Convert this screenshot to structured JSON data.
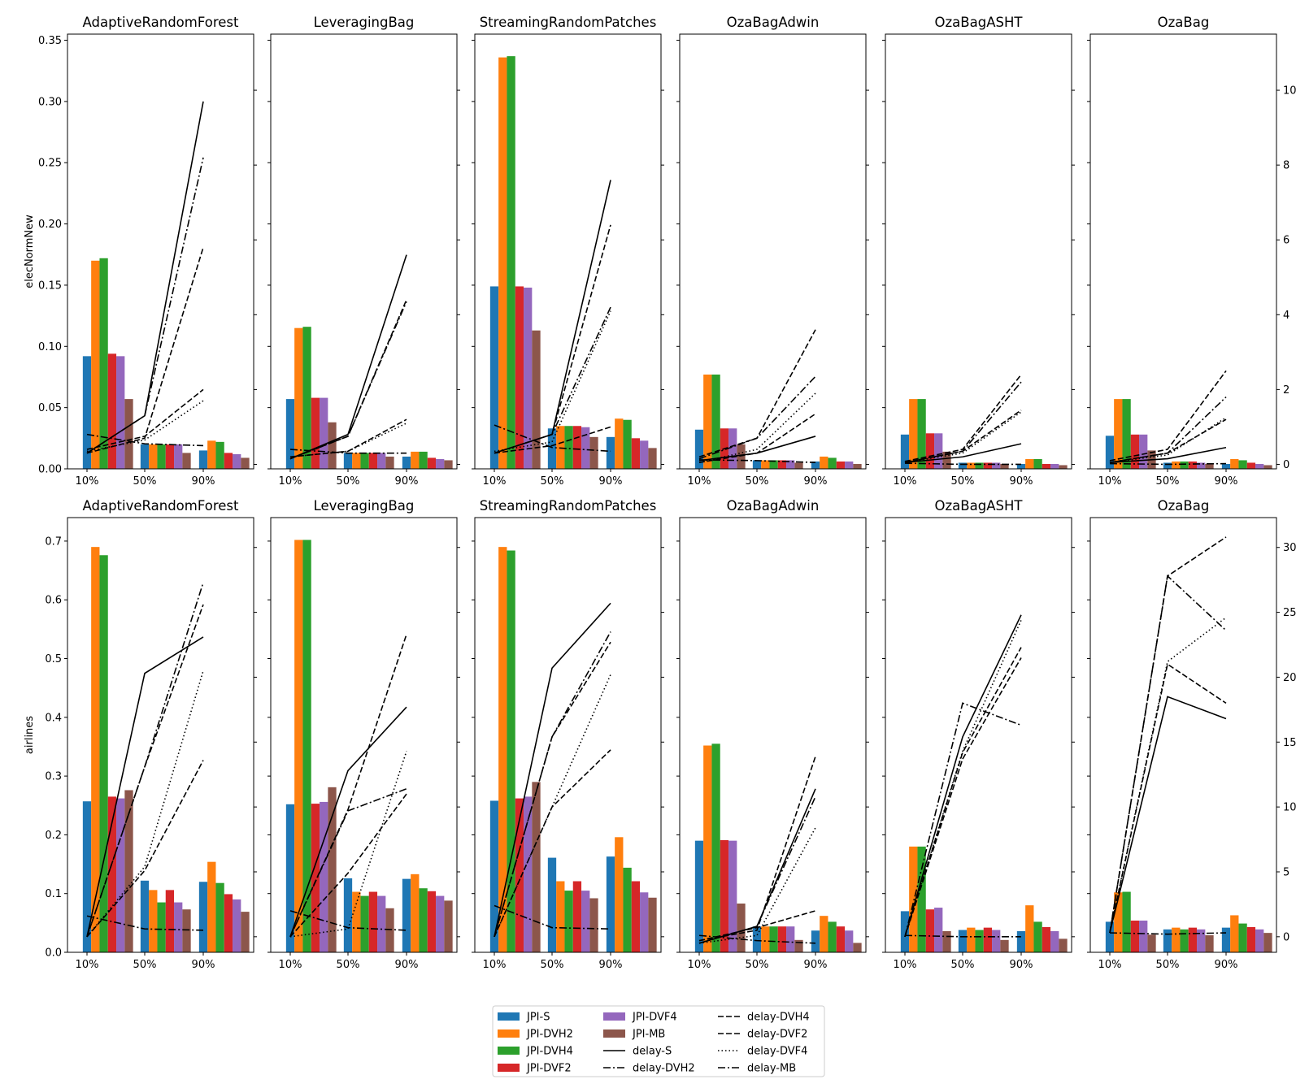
{
  "chart_data": {
    "type": "bar",
    "categories": [
      "10%",
      "50%",
      "90%"
    ],
    "bar_series": [
      {
        "name": "JPI-S",
        "color": "#1f77b4"
      },
      {
        "name": "JPI-DVH2",
        "color": "#ff7f0e"
      },
      {
        "name": "JPI-DVH4",
        "color": "#2ca02c"
      },
      {
        "name": "JPI-DVF2",
        "color": "#d62728"
      },
      {
        "name": "JPI-DVF4",
        "color": "#9467bd"
      },
      {
        "name": "JPI-MB",
        "color": "#8c564b"
      }
    ],
    "line_series": [
      {
        "name": "delay-S",
        "style": "solid"
      },
      {
        "name": "delay-DVH2",
        "style": "dashdot"
      },
      {
        "name": "delay-DVH4",
        "style": "dashed"
      },
      {
        "name": "delay-DVF2",
        "style": "dashed"
      },
      {
        "name": "delay-DVF4",
        "style": "dotted"
      },
      {
        "name": "delay-MB",
        "style": "dashdot"
      }
    ],
    "rows": [
      {
        "ylabel": "elecNormNew",
        "left_ylim": [
          0,
          0.355
        ],
        "left_ticks": [
          "0.00",
          "0.05",
          "0.10",
          "0.15",
          "0.20",
          "0.25",
          "0.30",
          "0.35"
        ],
        "right_ticks": [
          "0",
          "2",
          "4",
          "6",
          "8",
          "10"
        ],
        "panels": [
          {
            "title": "AdaptiveRandomForest",
            "right_ylim": [
              -0.12,
              11.5
            ],
            "bars": [
              [
                0.092,
                0.17,
                0.172,
                0.094,
                0.092,
                0.057
              ],
              [
                0.02,
                0.02,
                0.02,
                0.02,
                0.02,
                0.013
              ],
              [
                0.015,
                0.023,
                0.022,
                0.013,
                0.012,
                0.009
              ]
            ],
            "lines": [
              [
                0.3,
                1.3,
                9.7
              ],
              [
                0.3,
                1.3,
                8.2
              ],
              [
                0.3,
                0.7,
                5.8
              ],
              [
                0.4,
                0.75,
                2.0
              ],
              [
                0.35,
                0.65,
                1.7
              ],
              [
                0.8,
                0.55,
                0.5
              ]
            ]
          },
          {
            "title": "LeveragingBag",
            "right_ylim": [
              -0.12,
              11.5
            ],
            "bars": [
              [
                0.057,
                0.115,
                0.116,
                0.058,
                0.058,
                0.038
              ],
              [
                0.013,
                0.013,
                0.013,
                0.013,
                0.013,
                0.01
              ],
              [
                0.01,
                0.014,
                0.014,
                0.009,
                0.008,
                0.007
              ]
            ],
            "lines": [
              [
                0.15,
                0.8,
                5.6
              ],
              [
                0.15,
                0.75,
                4.35
              ],
              [
                0.15,
                0.75,
                4.4
              ],
              [
                0.2,
                0.35,
                1.2
              ],
              [
                0.2,
                0.35,
                1.1
              ],
              [
                0.4,
                0.3,
                0.3
              ]
            ]
          },
          {
            "title": "StreamingRandomPatches",
            "right_ylim": [
              -0.12,
              11.5
            ],
            "bars": [
              [
                0.149,
                0.336,
                0.337,
                0.149,
                0.148,
                0.113
              ],
              [
                0.033,
                0.035,
                0.035,
                0.035,
                0.034,
                0.026
              ],
              [
                0.026,
                0.041,
                0.04,
                0.025,
                0.023,
                0.017
              ]
            ],
            "lines": [
              [
                0.3,
                0.8,
                7.6
              ],
              [
                0.3,
                0.8,
                4.2
              ],
              [
                0.3,
                0.8,
                6.4
              ],
              [
                0.3,
                0.5,
                1.0
              ],
              [
                0.35,
                0.6,
                4.1
              ],
              [
                1.05,
                0.45,
                0.35
              ]
            ]
          },
          {
            "title": "OzaBagAdwin",
            "right_ylim": [
              -0.12,
              11.5
            ],
            "bars": [
              [
                0.032,
                0.077,
                0.077,
                0.033,
                0.033,
                0.02
              ],
              [
                0.007,
                0.007,
                0.007,
                0.007,
                0.007,
                0.005
              ],
              [
                0.006,
                0.01,
                0.009,
                0.006,
                0.006,
                0.004
              ]
            ],
            "lines": [
              [
                0.1,
                0.3,
                0.75
              ],
              [
                0.15,
                0.7,
                2.35
              ],
              [
                0.2,
                0.7,
                3.6
              ],
              [
                0.05,
                0.3,
                1.35
              ],
              [
                0.05,
                0.4,
                1.9
              ],
              [
                0.12,
                0.1,
                0.05
              ]
            ]
          },
          {
            "title": "OzaBagASHT",
            "right_ylim": [
              -0.12,
              11.5
            ],
            "bars": [
              [
                0.028,
                0.057,
                0.057,
                0.029,
                0.029,
                0.014
              ],
              [
                0.005,
                0.005,
                0.005,
                0.005,
                0.005,
                0.004
              ],
              [
                0.004,
                0.008,
                0.008,
                0.004,
                0.004,
                0.003
              ]
            ],
            "lines": [
              [
                0.05,
                0.2,
                0.55
              ],
              [
                0.05,
                0.35,
                2.2
              ],
              [
                0.08,
                0.4,
                2.4
              ],
              [
                0.05,
                0.35,
                1.45
              ],
              [
                0.05,
                0.3,
                1.4
              ],
              [
                0.03,
                0.0,
                0.0
              ]
            ]
          },
          {
            "title": "OzaBag",
            "right_ylim": [
              -0.12,
              11.5
            ],
            "bars": [
              [
                0.027,
                0.057,
                0.057,
                0.028,
                0.028,
                0.015
              ],
              [
                0.005,
                0.006,
                0.006,
                0.006,
                0.005,
                0.004
              ],
              [
                0.004,
                0.008,
                0.007,
                0.005,
                0.004,
                0.003
              ]
            ],
            "lines": [
              [
                0.05,
                0.15,
                0.45
              ],
              [
                0.05,
                0.3,
                1.8
              ],
              [
                0.1,
                0.4,
                2.5
              ],
              [
                0.05,
                0.3,
                1.2
              ],
              [
                0.05,
                0.25,
                1.25
              ],
              [
                0.02,
                0.0,
                0.02
              ]
            ]
          }
        ]
      },
      {
        "ylabel": "airlines",
        "left_ylim": [
          0,
          0.74
        ],
        "left_ticks": [
          "0.0",
          "0.1",
          "0.2",
          "0.3",
          "0.4",
          "0.5",
          "0.6",
          "0.7"
        ],
        "right_ticks": [
          "0",
          "5",
          "10",
          "15",
          "20",
          "25",
          "30"
        ],
        "panels": [
          {
            "title": "AdaptiveRandomForest",
            "right_ylim": [
              -1.2,
              32.3
            ],
            "bars": [
              [
                0.257,
                0.69,
                0.676,
                0.265,
                0.262,
                0.276
              ],
              [
                0.122,
                0.106,
                0.085,
                0.106,
                0.085,
                0.073
              ],
              [
                0.12,
                0.154,
                0.118,
                0.099,
                0.09,
                0.069
              ]
            ],
            "lines": [
              [
                0.0,
                20.3,
                23.1
              ],
              [
                0.0,
                13.1,
                27.3
              ],
              [
                0.0,
                13.1,
                25.6
              ],
              [
                0.0,
                5.1,
                13.6
              ],
              [
                0.0,
                5.4,
                20.5
              ],
              [
                1.6,
                0.6,
                0.5
              ]
            ]
          },
          {
            "title": "LeveragingBag",
            "right_ylim": [
              -1.2,
              32.3
            ],
            "bars": [
              [
                0.252,
                0.702,
                0.702,
                0.253,
                0.256,
                0.281
              ],
              [
                0.126,
                0.103,
                0.096,
                0.103,
                0.096,
                0.075
              ],
              [
                0.125,
                0.133,
                0.109,
                0.104,
                0.096,
                0.088
              ]
            ],
            "lines": [
              [
                0.0,
                12.8,
                17.7
              ],
              [
                0.0,
                9.7,
                11.4
              ],
              [
                0.0,
                9.8,
                23.3
              ],
              [
                0.0,
                4.9,
                11.0
              ],
              [
                0.0,
                0.6,
                14.3
              ],
              [
                2.0,
                0.7,
                0.5
              ]
            ]
          },
          {
            "title": "StreamingRandomPatches",
            "right_ylim": [
              -1.2,
              32.3
            ],
            "bars": [
              [
                0.258,
                0.69,
                0.684,
                0.262,
                0.265,
                0.29
              ],
              [
                0.161,
                0.121,
                0.105,
                0.121,
                0.105,
                0.092
              ],
              [
                0.163,
                0.196,
                0.144,
                0.121,
                0.102,
                0.093
              ]
            ],
            "lines": [
              [
                0.0,
                20.7,
                25.7
              ],
              [
                0.0,
                15.4,
                23.5
              ],
              [
                0.0,
                15.4,
                22.7
              ],
              [
                0.0,
                10.0,
                14.4
              ],
              [
                0.0,
                10.0,
                20.2
              ],
              [
                2.4,
                0.7,
                0.6
              ]
            ]
          },
          {
            "title": "OzaBagAdwin",
            "right_ylim": [
              -1.2,
              32.3
            ],
            "bars": [
              [
                0.19,
                0.352,
                0.355,
                0.191,
                0.19,
                0.083
              ],
              [
                0.044,
                0.044,
                0.044,
                0.044,
                0.044,
                0.021
              ],
              [
                0.037,
                0.062,
                0.052,
                0.044,
                0.037,
                0.016
              ]
            ],
            "lines": [
              [
                -0.5,
                0.8,
                11.4
              ],
              [
                -0.5,
                0.8,
                10.8
              ],
              [
                -0.3,
                0.5,
                13.9
              ],
              [
                -0.3,
                0.7,
                2.0
              ],
              [
                -0.5,
                0.1,
                8.4
              ],
              [
                0.1,
                -0.3,
                -0.5
              ]
            ]
          },
          {
            "title": "OzaBagASHT",
            "right_ylim": [
              -1.2,
              32.3
            ],
            "bars": [
              [
                0.07,
                0.18,
                0.18,
                0.073,
                0.076,
                0.036
              ],
              [
                0.038,
                0.042,
                0.038,
                0.042,
                0.038,
                0.021
              ],
              [
                0.036,
                0.08,
                0.052,
                0.043,
                0.036,
                0.023
              ]
            ],
            "lines": [
              [
                0.0,
                15.4,
                24.8
              ],
              [
                0.0,
                18.0,
                16.3
              ],
              [
                0.0,
                14.2,
                22.3
              ],
              [
                0.0,
                13.7,
                21.5
              ],
              [
                0.0,
                14.3,
                24.4
              ],
              [
                0.1,
                0.0,
                0.0
              ]
            ]
          },
          {
            "title": "OzaBag",
            "right_ylim": [
              -1.2,
              32.3
            ],
            "bars": [
              [
                0.052,
                0.102,
                0.103,
                0.054,
                0.054,
                0.03
              ],
              [
                0.039,
                0.042,
                0.039,
                0.042,
                0.039,
                0.029
              ],
              [
                0.042,
                0.063,
                0.049,
                0.043,
                0.039,
                0.033
              ]
            ],
            "lines": [
              [
                0.3,
                18.5,
                16.8
              ],
              [
                0.3,
                27.8,
                23.6
              ],
              [
                0.3,
                27.8,
                30.8
              ],
              [
                0.3,
                21.0,
                18.0
              ],
              [
                0.3,
                21.2,
                24.6
              ],
              [
                0.3,
                0.2,
                0.3
              ]
            ]
          }
        ]
      }
    ]
  }
}
